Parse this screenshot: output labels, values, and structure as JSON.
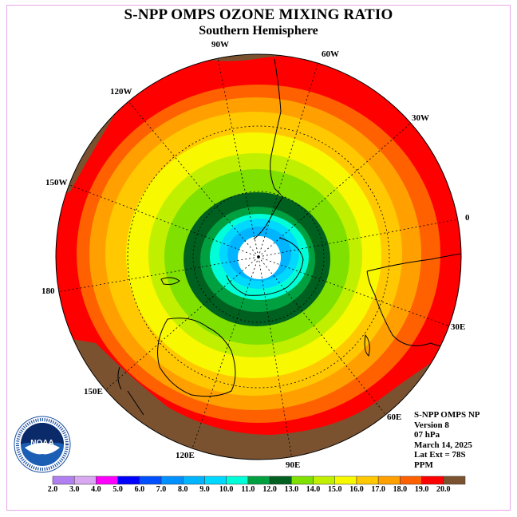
{
  "title": "S-NPP OMPS OZONE MIXING RATIO",
  "subtitle": "Southern Hemisphere",
  "longitude_labels": [
    "90W",
    "60W",
    "30W",
    "0",
    "30E",
    "60E",
    "90E",
    "120E",
    "150E",
    "180",
    "150W",
    "120W"
  ],
  "info": {
    "line1": "S-NPP OMPS NP",
    "line2": "Version 8",
    "line3": "07 hPa",
    "line4": "March 14, 2025",
    "line5": "Lat Ext = 78S",
    "line6": "PPM"
  },
  "logo_text": "NOAA",
  "colorbar": {
    "ticks": [
      "2.0",
      "3.0",
      "4.0",
      "5.0",
      "6.0",
      "7.0",
      "8.0",
      "9.0",
      "10.0",
      "11.0",
      "12.0",
      "13.0",
      "14.0",
      "15.0",
      "16.0",
      "17.0",
      "18.0",
      "19.0",
      "20.0"
    ],
    "colors": [
      "#b07ff0",
      "#d8a8f0",
      "#ff00ff",
      "#0000ff",
      "#0050ff",
      "#0090ff",
      "#00b4ff",
      "#00d8ff",
      "#00ffd8",
      "#00a040",
      "#006020",
      "#80e000",
      "#c0f000",
      "#f8f800",
      "#ffc800",
      "#ffa000",
      "#ff6000",
      "#ff0000",
      "#7a5230"
    ]
  }
}
